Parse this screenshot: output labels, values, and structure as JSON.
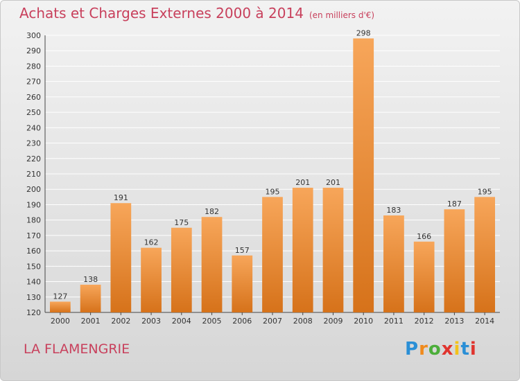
{
  "header": {
    "title": "Achats et Charges Externes 2000 à 2014",
    "unit": "(en milliers d'€)"
  },
  "footer": {
    "commune": "LA FLAMENGRIE",
    "logo_text": "Proxiti"
  },
  "colors": {
    "title": "#c8405c",
    "bar_top": "#f7a65a",
    "bar_bottom": "#d6721a",
    "grid": "#ffffff"
  },
  "chart_data": {
    "type": "bar",
    "title": "Achats et Charges Externes 2000 à 2014",
    "subtitle": "(en milliers d'€)",
    "categories": [
      "2000",
      "2001",
      "2002",
      "2003",
      "2004",
      "2005",
      "2006",
      "2007",
      "2008",
      "2009",
      "2010",
      "2011",
      "2012",
      "2013",
      "2014"
    ],
    "values": [
      127,
      138,
      191,
      162,
      175,
      182,
      157,
      195,
      201,
      201,
      298,
      183,
      166,
      187,
      195
    ],
    "ylim": [
      120,
      300
    ],
    "yticks": [
      120,
      130,
      140,
      150,
      160,
      170,
      180,
      190,
      200,
      210,
      220,
      230,
      240,
      250,
      260,
      270,
      280,
      290,
      300
    ],
    "grid": true,
    "xlabel": "",
    "ylabel": ""
  }
}
